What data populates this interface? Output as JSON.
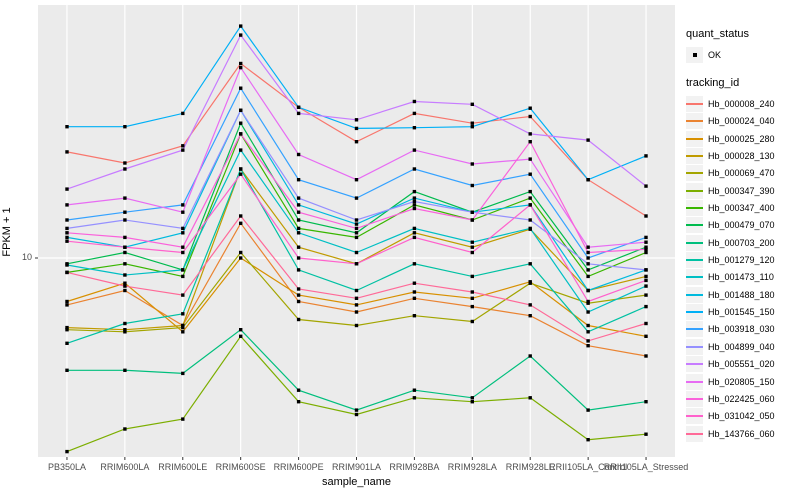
{
  "style": {
    "figure_bg": "#FFFFFF",
    "panel_bg": "#EBEBEB",
    "grid_color": "#FFFFFF",
    "tick_color": "#333333",
    "tick_label_color": "#4D4D4D",
    "point_color": "#000000",
    "legend_key_bg": "#F2F2F2"
  },
  "chart_data": {
    "type": "line",
    "title": "",
    "xlabel": "sample_name",
    "ylabel": "FPKM + 1",
    "y_scale": "log10",
    "y_tick_labels": [
      "10"
    ],
    "y_tick_values": [
      10
    ],
    "ylim_approx": [
      1.6,
      90
    ],
    "grid": "white-on-gray, vertical line per category, horizontal line at y=10",
    "legend_position": "right",
    "point_marker": "small black square, quant_status = OK",
    "categories": [
      "PB350LA",
      "RRIM600LA",
      "RRIM600LE",
      "RRIM600SE",
      "RRIM600PE",
      "RRIM901LA",
      "RRIM928BA",
      "RRIM928LA",
      "RRIM928LE",
      "RRII105LA_Control",
      "RRII105LA_Stressed"
    ],
    "series": [
      {
        "name": "Hb_000008_240",
        "color": "#F8766D",
        "values": [
          25.6,
          23.2,
          27,
          56,
          38,
          28,
          36,
          33,
          35,
          20,
          14.5
        ]
      },
      {
        "name": "Hb_000024_040",
        "color": "#EA8331",
        "values": [
          6.6,
          7.5,
          5.5,
          13.6,
          6.8,
          6.2,
          7,
          6.5,
          6,
          4.6,
          4.2
        ]
      },
      {
        "name": "Hb_000025_280",
        "color": "#D89000",
        "values": [
          6.8,
          8,
          5.2,
          10,
          7.2,
          6.6,
          7.4,
          7,
          8.1,
          5.5,
          5
        ]
      },
      {
        "name": "Hb_000028_130",
        "color": "#C09B00",
        "values": [
          5.4,
          5.3,
          5.5,
          22,
          11,
          9.5,
          12.5,
          11,
          12.9,
          7.5,
          8.5
        ]
      },
      {
        "name": "Hb_000069_470",
        "color": "#A3A500",
        "values": [
          5.3,
          5.2,
          5.4,
          10.5,
          5.8,
          5.5,
          6,
          5.7,
          8,
          6.7,
          7.2
        ]
      },
      {
        "name": "Hb_000347_390",
        "color": "#7CAE00",
        "values": [
          1.8,
          2.2,
          2.4,
          5,
          2.8,
          2.5,
          2.9,
          2.8,
          2.9,
          2,
          2.1
        ]
      },
      {
        "name": "Hb_000347_400",
        "color": "#39B600",
        "values": [
          8.8,
          9.5,
          8.5,
          30,
          13,
          12,
          16,
          14,
          17,
          8.5,
          10.5
        ]
      },
      {
        "name": "Hb_000479_070",
        "color": "#00BB4E",
        "values": [
          9.5,
          10.5,
          9,
          33,
          14,
          12.5,
          18,
          15,
          18,
          9,
          11
        ]
      },
      {
        "name": "Hb_000703_200",
        "color": "#00BF7D",
        "values": [
          3.7,
          3.7,
          3.6,
          5.3,
          3.1,
          2.6,
          3.1,
          2.9,
          4.2,
          2.6,
          2.8
        ]
      },
      {
        "name": "Hb_001279_120",
        "color": "#00C1A3",
        "values": [
          4.7,
          5.6,
          6.1,
          22,
          9,
          7.5,
          9.5,
          8.5,
          9.5,
          5.2,
          6.5
        ]
      },
      {
        "name": "Hb_001473_110",
        "color": "#00BFC4",
        "values": [
          9.4,
          8.6,
          9,
          26,
          12.5,
          10.5,
          13,
          11.5,
          13,
          6.2,
          7.8
        ]
      },
      {
        "name": "Hb_001488_180",
        "color": "#00BADE",
        "values": [
          12,
          11,
          12.5,
          37,
          16,
          13.5,
          17,
          15,
          16,
          7.5,
          9
        ]
      },
      {
        "name": "Hb_001545_150",
        "color": "#00B0F6",
        "values": [
          32,
          32,
          36,
          78,
          38,
          31.5,
          31.7,
          32,
          37.7,
          20,
          24.7
        ]
      },
      {
        "name": "Hb_003918_030",
        "color": "#35A2FF",
        "values": [
          14,
          15,
          16,
          45,
          20,
          17,
          22,
          19,
          21,
          10,
          12
        ]
      },
      {
        "name": "Hb_004899_040",
        "color": "#9590FF",
        "values": [
          13,
          14,
          13,
          37,
          17,
          14,
          16.5,
          15,
          14,
          9.5,
          9
        ]
      },
      {
        "name": "Hb_005551_020",
        "color": "#C77CFF",
        "values": [
          18.4,
          22,
          26,
          72,
          36,
          34,
          40,
          39,
          30,
          28.4,
          18.9
        ]
      },
      {
        "name": "Hb_020805_150",
        "color": "#E76BF3",
        "values": [
          16,
          17,
          15,
          54,
          25,
          20,
          26,
          23,
          24,
          11,
          11.5
        ]
      },
      {
        "name": "Hb_022425_060",
        "color": "#FA62DB",
        "values": [
          12.5,
          12,
          11,
          30,
          15,
          13,
          15.5,
          14,
          28,
          10.5,
          10.8
        ]
      },
      {
        "name": "Hb_031042_050",
        "color": "#FF61CC",
        "values": [
          11.6,
          11,
          10.5,
          21,
          10,
          9.5,
          12,
          10.5,
          16,
          6.8,
          8.2
        ]
      },
      {
        "name": "Hb_143766_060",
        "color": "#FF6A98",
        "values": [
          8.8,
          7.8,
          7.2,
          14.5,
          7.6,
          7,
          8,
          7.4,
          6.6,
          4.8,
          5.6
        ]
      }
    ],
    "legend": {
      "quant_title": "quant_status",
      "quant_item": "OK",
      "tracking_title": "tracking_id"
    }
  }
}
